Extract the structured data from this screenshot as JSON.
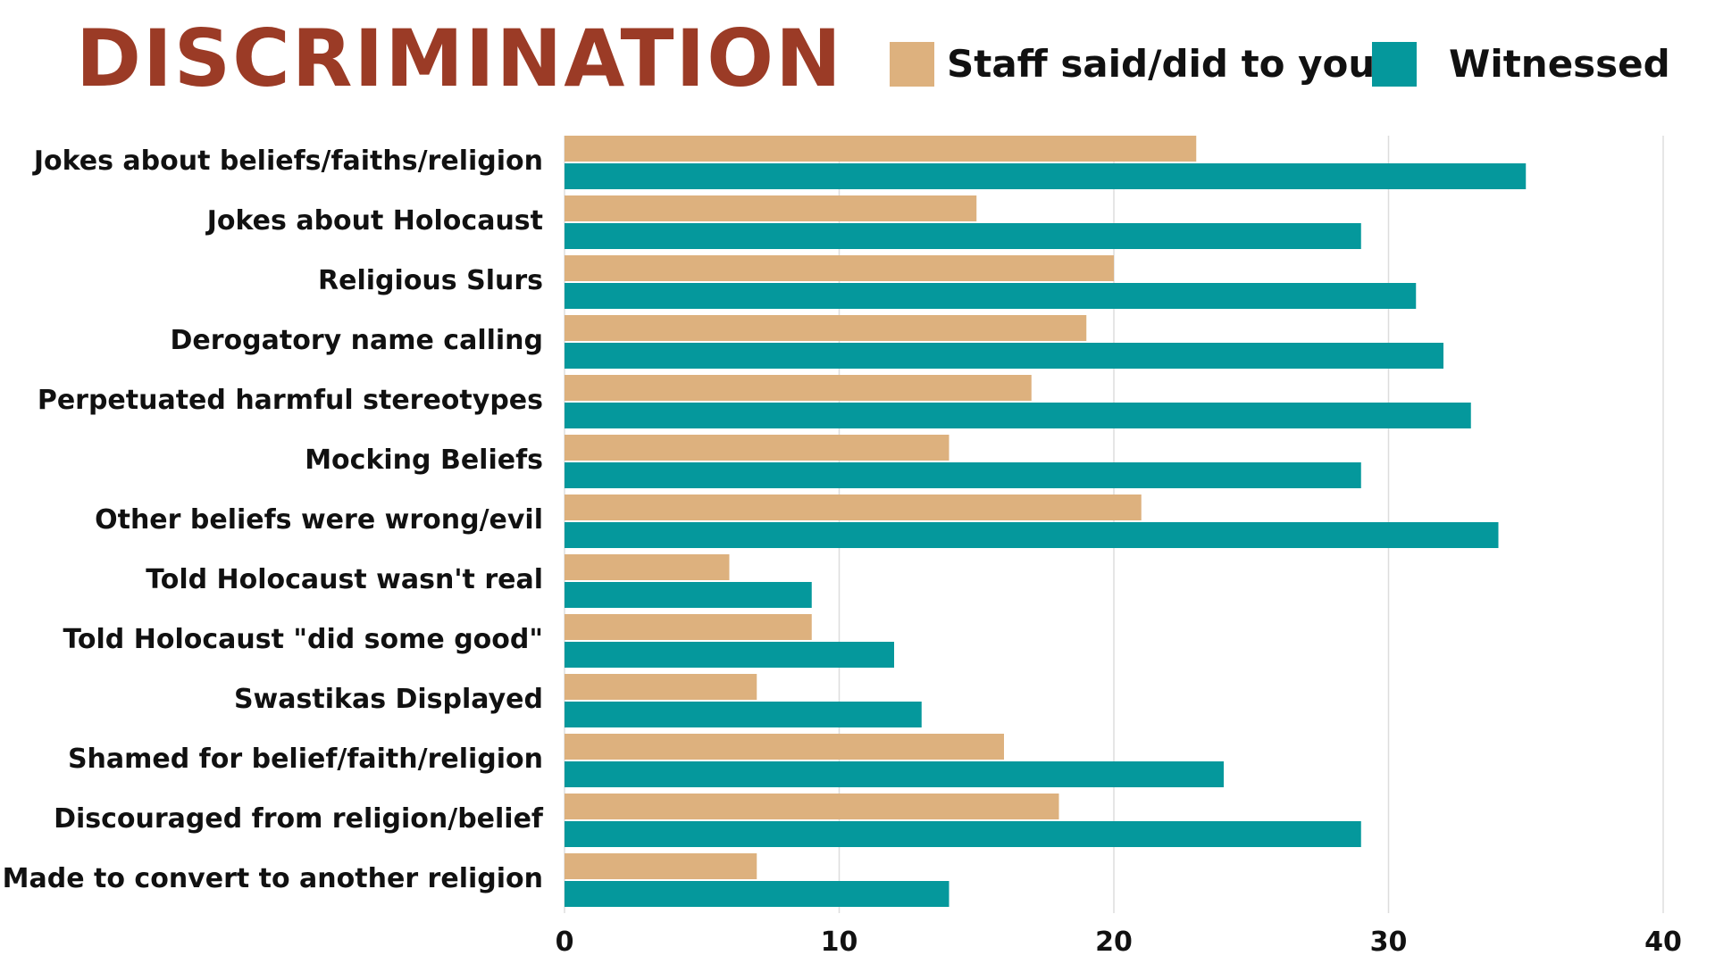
{
  "chart_data": {
    "type": "bar",
    "orientation": "horizontal",
    "title": "DISCRIMINATION",
    "categories": [
      "Jokes about beliefs/faiths/religion",
      "Jokes about Holocaust",
      "Religious Slurs",
      "Derogatory name calling",
      "Perpetuated harmful stereotypes",
      "Mocking Beliefs",
      "Other beliefs were wrong/evil",
      "Told Holocaust wasn't real",
      "Told Holocaust \"did some good\"",
      "Swastikas Displayed",
      "Shamed for belief/faith/religion",
      "Discouraged from religion/belief",
      "Made to convert to another religion"
    ],
    "series": [
      {
        "name": "Staff said/did to you",
        "color": "#DDB17E",
        "values": [
          23,
          15,
          20,
          19,
          17,
          14,
          21,
          6,
          9,
          7,
          16,
          18,
          7
        ]
      },
      {
        "name": "Witnessed",
        "color": "#05989C",
        "values": [
          35,
          29,
          31,
          32,
          33,
          29,
          34,
          9,
          12,
          13,
          24,
          29,
          14
        ]
      }
    ],
    "xlim": [
      0,
      40
    ],
    "xticks": [
      0,
      10,
      20,
      30,
      40
    ],
    "xtick_labels": [
      "0",
      "10",
      "20",
      "30",
      "40"
    ],
    "grid": true,
    "legend_position": "top-right",
    "title_color": "#9B3B26",
    "grid_color": "#DDDDDD",
    "text_color": "#111111"
  }
}
